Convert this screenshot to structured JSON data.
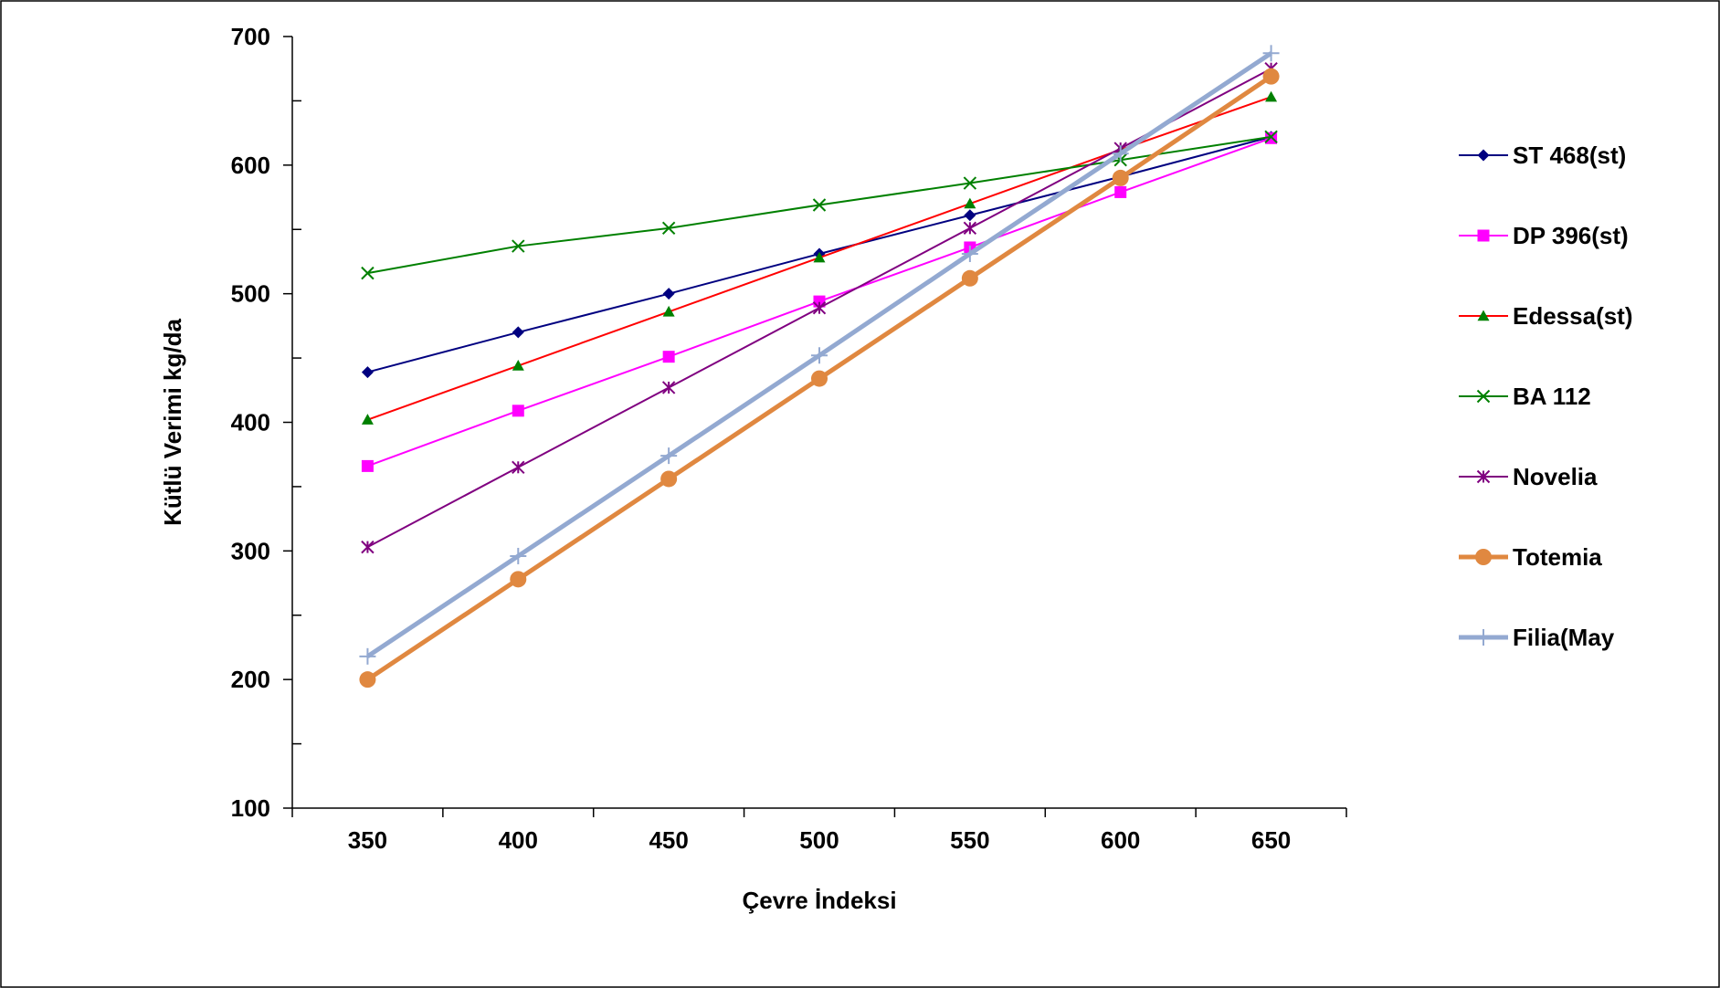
{
  "chart_data": {
    "type": "line",
    "title": "",
    "xlabel": "Çevre İndeksi",
    "ylabel": "Kütlü Verimi kg/da",
    "x": [
      350,
      400,
      450,
      500,
      550,
      600,
      650
    ],
    "xlim": [
      325,
      675
    ],
    "ylim": [
      100,
      700
    ],
    "yticks": [
      100,
      200,
      300,
      400,
      500,
      600,
      700
    ],
    "grid": false,
    "legend_position": "right",
    "series": [
      {
        "name": "ST 468(st)",
        "color": "#000080",
        "marker": "diamond",
        "stroke_width": "thin",
        "values": [
          439,
          470,
          500,
          531,
          561,
          591,
          622
        ]
      },
      {
        "name": "DP 396(st)",
        "color": "#FF00FF",
        "marker": "square",
        "stroke_width": "thin",
        "values": [
          366,
          409,
          451,
          494,
          536,
          579,
          621
        ]
      },
      {
        "name": "Edessa(st)",
        "color": "#FF0000",
        "line_color": "#FF0000",
        "marker_color": "#008000",
        "marker": "triangle",
        "stroke_width": "thin",
        "values": [
          402,
          444,
          486,
          528,
          570,
          612,
          653
        ]
      },
      {
        "name": "BA 112",
        "color": "#008000",
        "marker": "x",
        "stroke_width": "thin",
        "values": [
          516,
          537,
          551,
          569,
          586,
          604,
          622
        ]
      },
      {
        "name": "Novelia",
        "color": "#800080",
        "marker": "star",
        "stroke_width": "thin",
        "values": [
          303,
          365,
          427,
          489,
          551,
          613,
          675
        ]
      },
      {
        "name": "Totemia",
        "color": "#E08840",
        "marker": "circle",
        "stroke_width": "thick",
        "values": [
          200,
          278,
          356,
          434,
          512,
          590,
          669
        ]
      },
      {
        "name": "Filia(May",
        "color": "#93A9D1",
        "marker": "plus",
        "stroke_width": "thick",
        "values": [
          218,
          296,
          374,
          452,
          531,
          609,
          687
        ]
      }
    ]
  }
}
